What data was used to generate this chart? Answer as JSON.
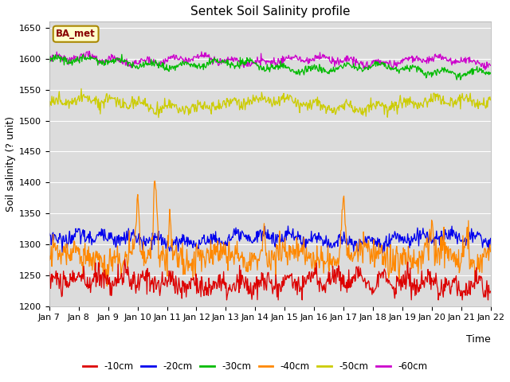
{
  "title": "Sentek Soil Salinity profile",
  "xlabel": "Time",
  "ylabel": "Soil salinity (? unit)",
  "ylim": [
    1200,
    1660
  ],
  "yticks": [
    1200,
    1250,
    1300,
    1350,
    1400,
    1450,
    1500,
    1550,
    1600,
    1650
  ],
  "xtick_labels": [
    "Jan 7",
    "Jan 8",
    "Jan 9",
    "Jan 10",
    "Jan 11",
    "Jan 12",
    "Jan 13",
    "Jan 14",
    "Jan 15",
    "Jan 16",
    "Jan 17",
    "Jan 18",
    "Jan 19",
    "Jan 20",
    "Jan 21",
    "Jan 22"
  ],
  "colors": {
    "-10cm": "#dd0000",
    "-20cm": "#0000ee",
    "-30cm": "#00bb00",
    "-40cm": "#ff8800",
    "-50cm": "#cccc00",
    "-60cm": "#cc00cc"
  },
  "legend_label": "BA_met",
  "legend_bg": "#ffffcc",
  "legend_border": "#aa8800",
  "plot_bg": "#dcdcdc",
  "grid_color": "#ffffff",
  "title_fontsize": 11,
  "axis_fontsize": 9,
  "tick_fontsize": 8
}
